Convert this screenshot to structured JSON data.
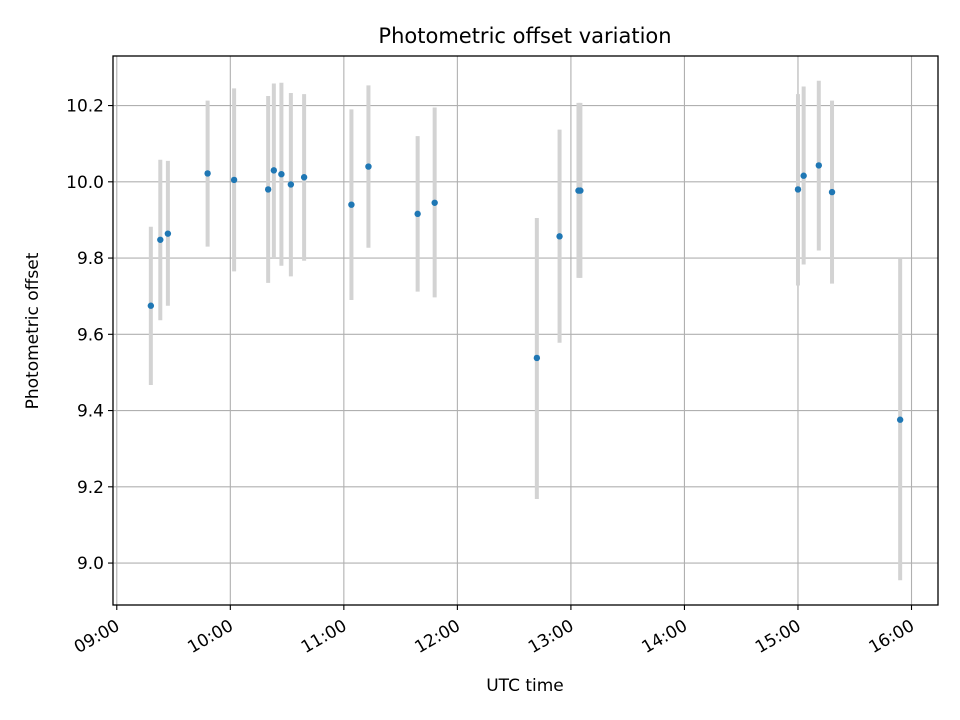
{
  "chart_data": {
    "type": "scatter",
    "title": "Photometric offset variation",
    "xlabel": "UTC time",
    "ylabel": "Photometric offset",
    "x_ticks": [
      "09:00",
      "10:00",
      "11:00",
      "12:00",
      "13:00",
      "14:00",
      "15:00",
      "16:00"
    ],
    "y_ticks": [
      "9.0",
      "9.2",
      "9.4",
      "9.6",
      "9.8",
      "10.0",
      "10.2"
    ],
    "xlim": [
      "08:58",
      "16:14"
    ],
    "ylim": [
      8.89,
      10.33
    ],
    "grid": true,
    "point_color": "#1f77b4",
    "errorbar_color": "#d3d3d3",
    "series": [
      {
        "points": [
          {
            "t": "09:18",
            "y": 9.675,
            "lo": 9.467,
            "hi": 9.882
          },
          {
            "t": "09:23",
            "y": 9.848,
            "lo": 9.637,
            "hi": 10.058
          },
          {
            "t": "09:27",
            "y": 9.864,
            "lo": 9.675,
            "hi": 10.055
          },
          {
            "t": "09:48",
            "y": 10.022,
            "lo": 9.83,
            "hi": 10.213
          },
          {
            "t": "10:02",
            "y": 10.005,
            "lo": 9.765,
            "hi": 10.245
          },
          {
            "t": "10:20",
            "y": 9.98,
            "lo": 9.735,
            "hi": 10.225
          },
          {
            "t": "10:23",
            "y": 10.03,
            "lo": 9.8,
            "hi": 10.258
          },
          {
            "t": "10:27",
            "y": 10.02,
            "lo": 9.78,
            "hi": 10.26
          },
          {
            "t": "10:32",
            "y": 9.993,
            "lo": 9.752,
            "hi": 10.233
          },
          {
            "t": "10:39",
            "y": 10.012,
            "lo": 9.793,
            "hi": 10.23
          },
          {
            "t": "11:04",
            "y": 9.94,
            "lo": 9.69,
            "hi": 10.19
          },
          {
            "t": "11:13",
            "y": 10.04,
            "lo": 9.827,
            "hi": 10.253
          },
          {
            "t": "11:39",
            "y": 9.916,
            "lo": 9.712,
            "hi": 10.12
          },
          {
            "t": "11:48",
            "y": 9.945,
            "lo": 9.697,
            "hi": 10.195
          },
          {
            "t": "12:42",
            "y": 9.538,
            "lo": 9.168,
            "hi": 9.905
          },
          {
            "t": "12:54",
            "y": 9.857,
            "lo": 9.578,
            "hi": 10.137
          },
          {
            "t": "13:04",
            "y": 9.977,
            "lo": 9.748,
            "hi": 10.207
          },
          {
            "t": "13:05",
            "y": 9.977,
            "lo": 9.748,
            "hi": 10.207
          },
          {
            "t": "15:00",
            "y": 9.98,
            "lo": 9.728,
            "hi": 10.23
          },
          {
            "t": "15:03",
            "y": 10.016,
            "lo": 9.783,
            "hi": 10.25
          },
          {
            "t": "15:11",
            "y": 10.043,
            "lo": 9.82,
            "hi": 10.265
          },
          {
            "t": "15:18",
            "y": 9.973,
            "lo": 9.733,
            "hi": 10.213
          },
          {
            "t": "15:54",
            "y": 9.376,
            "lo": 8.955,
            "hi": 9.8
          }
        ]
      }
    ]
  }
}
